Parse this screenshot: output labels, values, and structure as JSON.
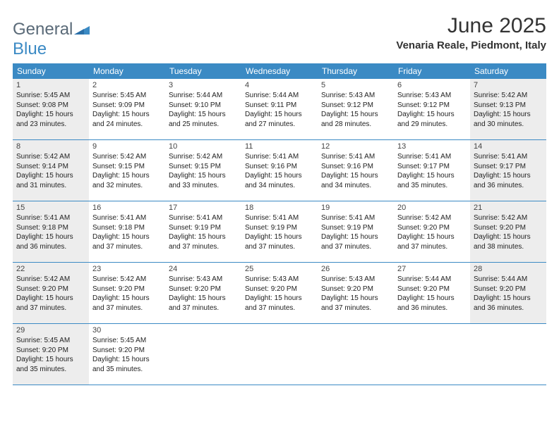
{
  "logo": {
    "general": "General",
    "blue": "Blue"
  },
  "title": {
    "month": "June 2025",
    "location": "Venaria Reale, Piedmont, Italy"
  },
  "colors": {
    "header_bg": "#3b8ac4",
    "header_text": "#ffffff",
    "shaded_bg": "#ededed",
    "border": "#3b8ac4",
    "logo_general": "#5a6a78",
    "logo_blue": "#3b8ac4"
  },
  "weekdays": [
    "Sunday",
    "Monday",
    "Tuesday",
    "Wednesday",
    "Thursday",
    "Friday",
    "Saturday"
  ],
  "weeks": [
    [
      {
        "day": "1",
        "sunrise": "Sunrise: 5:45 AM",
        "sunset": "Sunset: 9:08 PM",
        "daylight": "Daylight: 15 hours and 23 minutes.",
        "shaded": true
      },
      {
        "day": "2",
        "sunrise": "Sunrise: 5:45 AM",
        "sunset": "Sunset: 9:09 PM",
        "daylight": "Daylight: 15 hours and 24 minutes.",
        "shaded": false
      },
      {
        "day": "3",
        "sunrise": "Sunrise: 5:44 AM",
        "sunset": "Sunset: 9:10 PM",
        "daylight": "Daylight: 15 hours and 25 minutes.",
        "shaded": false
      },
      {
        "day": "4",
        "sunrise": "Sunrise: 5:44 AM",
        "sunset": "Sunset: 9:11 PM",
        "daylight": "Daylight: 15 hours and 27 minutes.",
        "shaded": false
      },
      {
        "day": "5",
        "sunrise": "Sunrise: 5:43 AM",
        "sunset": "Sunset: 9:12 PM",
        "daylight": "Daylight: 15 hours and 28 minutes.",
        "shaded": false
      },
      {
        "day": "6",
        "sunrise": "Sunrise: 5:43 AM",
        "sunset": "Sunset: 9:12 PM",
        "daylight": "Daylight: 15 hours and 29 minutes.",
        "shaded": false
      },
      {
        "day": "7",
        "sunrise": "Sunrise: 5:42 AM",
        "sunset": "Sunset: 9:13 PM",
        "daylight": "Daylight: 15 hours and 30 minutes.",
        "shaded": true
      }
    ],
    [
      {
        "day": "8",
        "sunrise": "Sunrise: 5:42 AM",
        "sunset": "Sunset: 9:14 PM",
        "daylight": "Daylight: 15 hours and 31 minutes.",
        "shaded": true
      },
      {
        "day": "9",
        "sunrise": "Sunrise: 5:42 AM",
        "sunset": "Sunset: 9:15 PM",
        "daylight": "Daylight: 15 hours and 32 minutes.",
        "shaded": false
      },
      {
        "day": "10",
        "sunrise": "Sunrise: 5:42 AM",
        "sunset": "Sunset: 9:15 PM",
        "daylight": "Daylight: 15 hours and 33 minutes.",
        "shaded": false
      },
      {
        "day": "11",
        "sunrise": "Sunrise: 5:41 AM",
        "sunset": "Sunset: 9:16 PM",
        "daylight": "Daylight: 15 hours and 34 minutes.",
        "shaded": false
      },
      {
        "day": "12",
        "sunrise": "Sunrise: 5:41 AM",
        "sunset": "Sunset: 9:16 PM",
        "daylight": "Daylight: 15 hours and 34 minutes.",
        "shaded": false
      },
      {
        "day": "13",
        "sunrise": "Sunrise: 5:41 AM",
        "sunset": "Sunset: 9:17 PM",
        "daylight": "Daylight: 15 hours and 35 minutes.",
        "shaded": false
      },
      {
        "day": "14",
        "sunrise": "Sunrise: 5:41 AM",
        "sunset": "Sunset: 9:17 PM",
        "daylight": "Daylight: 15 hours and 36 minutes.",
        "shaded": true
      }
    ],
    [
      {
        "day": "15",
        "sunrise": "Sunrise: 5:41 AM",
        "sunset": "Sunset: 9:18 PM",
        "daylight": "Daylight: 15 hours and 36 minutes.",
        "shaded": true
      },
      {
        "day": "16",
        "sunrise": "Sunrise: 5:41 AM",
        "sunset": "Sunset: 9:18 PM",
        "daylight": "Daylight: 15 hours and 37 minutes.",
        "shaded": false
      },
      {
        "day": "17",
        "sunrise": "Sunrise: 5:41 AM",
        "sunset": "Sunset: 9:19 PM",
        "daylight": "Daylight: 15 hours and 37 minutes.",
        "shaded": false
      },
      {
        "day": "18",
        "sunrise": "Sunrise: 5:41 AM",
        "sunset": "Sunset: 9:19 PM",
        "daylight": "Daylight: 15 hours and 37 minutes.",
        "shaded": false
      },
      {
        "day": "19",
        "sunrise": "Sunrise: 5:41 AM",
        "sunset": "Sunset: 9:19 PM",
        "daylight": "Daylight: 15 hours and 37 minutes.",
        "shaded": false
      },
      {
        "day": "20",
        "sunrise": "Sunrise: 5:42 AM",
        "sunset": "Sunset: 9:20 PM",
        "daylight": "Daylight: 15 hours and 37 minutes.",
        "shaded": false
      },
      {
        "day": "21",
        "sunrise": "Sunrise: 5:42 AM",
        "sunset": "Sunset: 9:20 PM",
        "daylight": "Daylight: 15 hours and 38 minutes.",
        "shaded": true
      }
    ],
    [
      {
        "day": "22",
        "sunrise": "Sunrise: 5:42 AM",
        "sunset": "Sunset: 9:20 PM",
        "daylight": "Daylight: 15 hours and 37 minutes.",
        "shaded": true
      },
      {
        "day": "23",
        "sunrise": "Sunrise: 5:42 AM",
        "sunset": "Sunset: 9:20 PM",
        "daylight": "Daylight: 15 hours and 37 minutes.",
        "shaded": false
      },
      {
        "day": "24",
        "sunrise": "Sunrise: 5:43 AM",
        "sunset": "Sunset: 9:20 PM",
        "daylight": "Daylight: 15 hours and 37 minutes.",
        "shaded": false
      },
      {
        "day": "25",
        "sunrise": "Sunrise: 5:43 AM",
        "sunset": "Sunset: 9:20 PM",
        "daylight": "Daylight: 15 hours and 37 minutes.",
        "shaded": false
      },
      {
        "day": "26",
        "sunrise": "Sunrise: 5:43 AM",
        "sunset": "Sunset: 9:20 PM",
        "daylight": "Daylight: 15 hours and 37 minutes.",
        "shaded": false
      },
      {
        "day": "27",
        "sunrise": "Sunrise: 5:44 AM",
        "sunset": "Sunset: 9:20 PM",
        "daylight": "Daylight: 15 hours and 36 minutes.",
        "shaded": false
      },
      {
        "day": "28",
        "sunrise": "Sunrise: 5:44 AM",
        "sunset": "Sunset: 9:20 PM",
        "daylight": "Daylight: 15 hours and 36 minutes.",
        "shaded": true
      }
    ],
    [
      {
        "day": "29",
        "sunrise": "Sunrise: 5:45 AM",
        "sunset": "Sunset: 9:20 PM",
        "daylight": "Daylight: 15 hours and 35 minutes.",
        "shaded": true
      },
      {
        "day": "30",
        "sunrise": "Sunrise: 5:45 AM",
        "sunset": "Sunset: 9:20 PM",
        "daylight": "Daylight: 15 hours and 35 minutes.",
        "shaded": false
      },
      {
        "empty": true
      },
      {
        "empty": true
      },
      {
        "empty": true
      },
      {
        "empty": true
      },
      {
        "empty": true
      }
    ]
  ]
}
